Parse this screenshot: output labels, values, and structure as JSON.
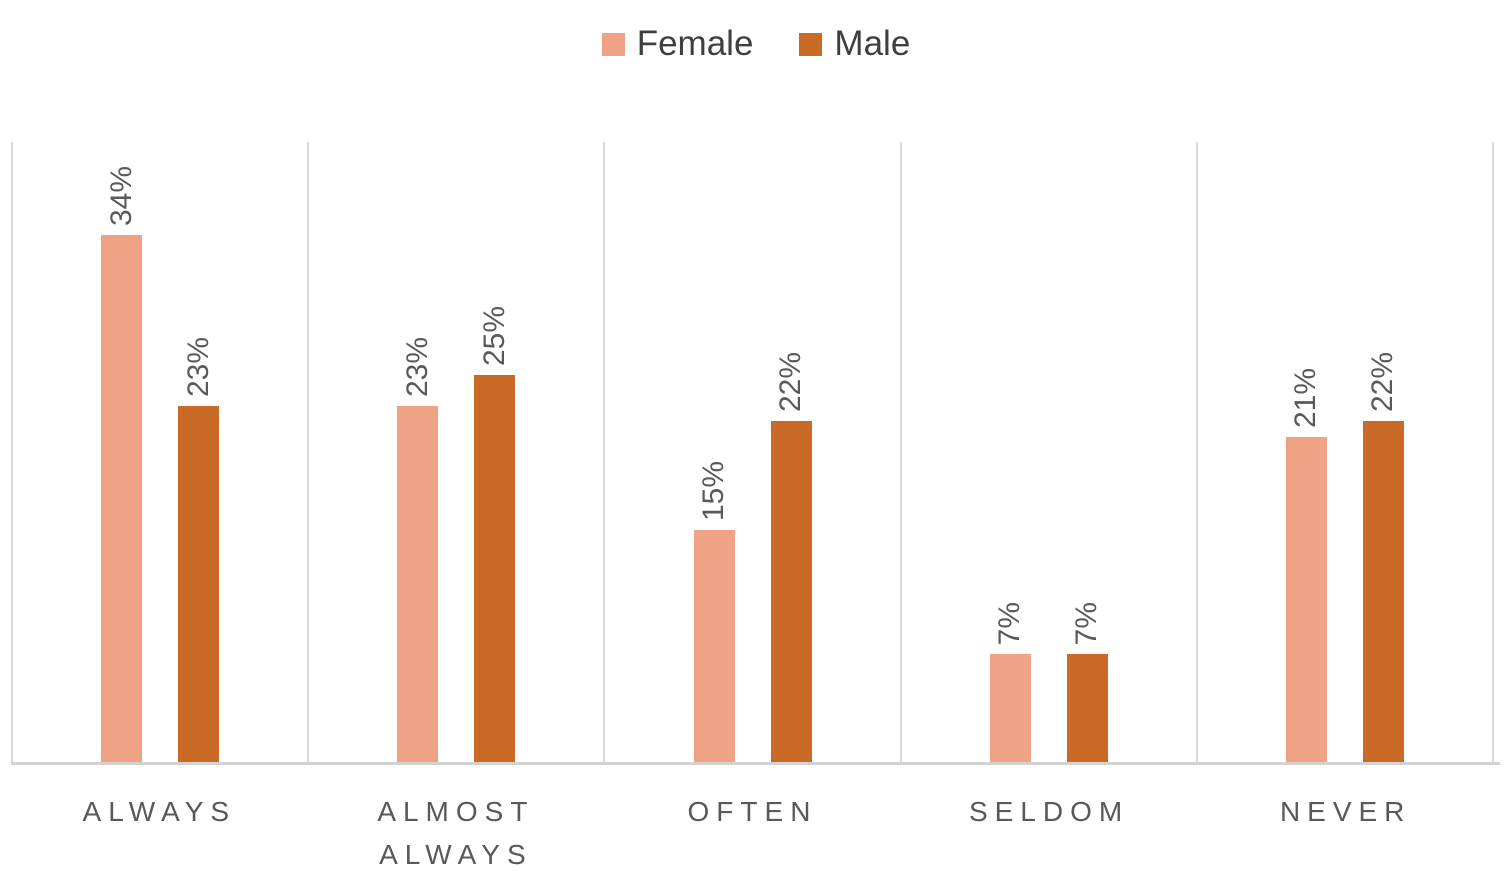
{
  "chart_data": {
    "type": "bar",
    "title": "",
    "categories": [
      "ALWAYS",
      "ALMOST ALWAYS",
      "OFTEN",
      "SELDOM",
      "NEVER"
    ],
    "series": [
      {
        "name": "Female",
        "color": "#f0a284",
        "values": [
          34,
          23,
          15,
          7,
          21
        ]
      },
      {
        "name": "Male",
        "color": "#c96a26",
        "values": [
          23,
          25,
          22,
          7,
          22
        ]
      }
    ],
    "data_labels": [
      "34%",
      "23%",
      "23%",
      "25%",
      "15%",
      "22%",
      "7%",
      "7%",
      "21%",
      "22%"
    ],
    "value_suffix": "%",
    "xlabel": "",
    "ylabel": "",
    "ylim": [
      0,
      40
    ],
    "grid": "vertical-panel-dividers-only",
    "legend_position": "top-center",
    "data_label_style": "rotated-90-above-bar"
  },
  "colors": {
    "female": "#f0a284",
    "male": "#c96a26",
    "gridline": "#d9d9d9",
    "baseline": "#d2d2d2",
    "label_text": "#595959",
    "legend_text": "#3f3f3f",
    "background": "#ffffff"
  }
}
